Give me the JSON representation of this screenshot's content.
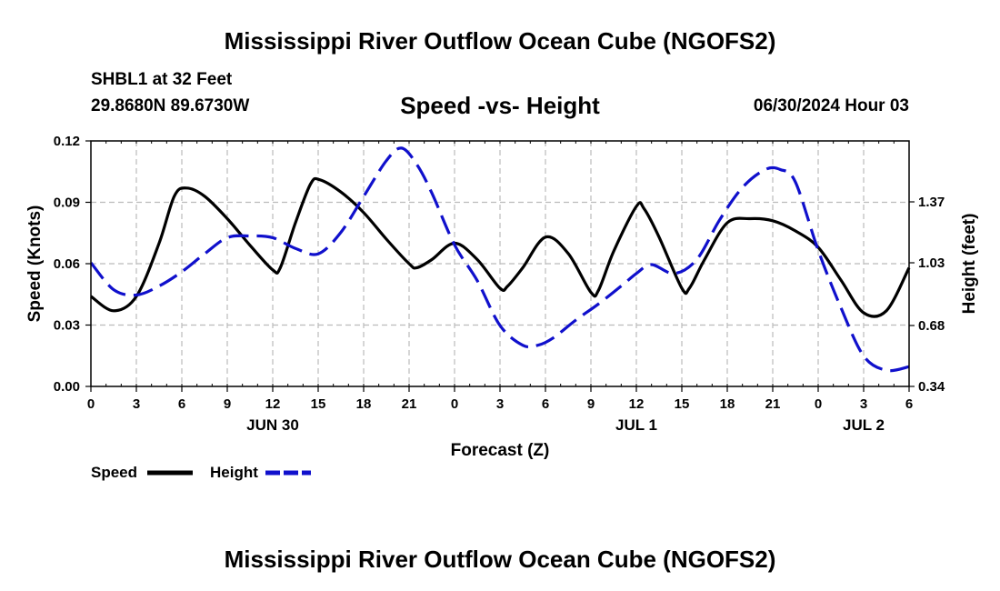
{
  "header": {
    "title": "Mississippi River Outflow Ocean Cube (NGOFS2)",
    "station": "SHBL1 at 32 Feet",
    "coords": "29.8680N  89.6730W",
    "date": "06/30/2024 Hour 03"
  },
  "footer": {
    "title": "Mississippi River Outflow Ocean Cube (NGOFS2)"
  },
  "colors": {
    "speed": "#000000",
    "height": "#1010cc",
    "grid": "#bbbbbb"
  },
  "chart_data": {
    "type": "line",
    "title": "Speed -vs- Height",
    "xlabel": "Forecast (Z)",
    "ylabel": "Speed (Knots)",
    "y2label": "Height (feet)",
    "x_unit": "hours from Jun 30 00Z",
    "xlim": [
      0,
      54
    ],
    "ylim": [
      0,
      0.12
    ],
    "y2lim": [
      0.34,
      1.71
    ],
    "x_ticks": [
      0,
      3,
      6,
      9,
      12,
      15,
      18,
      21,
      24,
      27,
      30,
      33,
      36,
      39,
      42,
      45,
      48,
      51,
      54
    ],
    "x_tick_labels": [
      "0",
      "3",
      "6",
      "9",
      "12",
      "15",
      "18",
      "21",
      "0",
      "3",
      "6",
      "9",
      "12",
      "15",
      "18",
      "21",
      "0",
      "3",
      "6"
    ],
    "date_labels": [
      {
        "label": "JUN 30",
        "x": 12
      },
      {
        "label": "JUL 1",
        "x": 36
      },
      {
        "label": "JUL 2",
        "x": 51
      }
    ],
    "y_ticks": [
      0.0,
      0.03,
      0.06,
      0.09,
      0.12
    ],
    "y_tick_labels": [
      "0.00",
      "0.03",
      "0.06",
      "0.09",
      "0.12"
    ],
    "y2_ticks": [
      0.34,
      0.68,
      1.03,
      1.37
    ],
    "y2_tick_labels": [
      "0.34",
      "0.68",
      "1.03",
      "1.37"
    ],
    "grid": true,
    "legend": [
      {
        "label": "Speed",
        "style": "solid"
      },
      {
        "label": "Height",
        "style": "dashed"
      }
    ],
    "series": [
      {
        "name": "Speed",
        "axis": "left",
        "style": "solid",
        "x": [
          0,
          1.5,
          3,
          4.5,
          5.5,
          6.3,
          7.5,
          9,
          10.5,
          12,
          12.5,
          13.5,
          14.5,
          15.1,
          16.5,
          18,
          19.5,
          21,
          21.5,
          22.5,
          24,
          25.5,
          27,
          27.5,
          28.5,
          30,
          31.5,
          33,
          33.5,
          34.5,
          36,
          36.5,
          37.5,
          39,
          39.5,
          40.5,
          42,
          43.5,
          45,
          46.5,
          48,
          49.5,
          51,
          52.5,
          54
        ],
        "values": [
          0.044,
          0.037,
          0.044,
          0.07,
          0.093,
          0.097,
          0.093,
          0.082,
          0.069,
          0.057,
          0.058,
          0.08,
          0.099,
          0.101,
          0.095,
          0.085,
          0.072,
          0.06,
          0.058,
          0.062,
          0.07,
          0.062,
          0.048,
          0.049,
          0.058,
          0.073,
          0.065,
          0.046,
          0.047,
          0.066,
          0.088,
          0.087,
          0.073,
          0.048,
          0.048,
          0.062,
          0.08,
          0.082,
          0.081,
          0.076,
          0.068,
          0.052,
          0.036,
          0.037,
          0.058
        ]
      },
      {
        "name": "Height",
        "axis": "right",
        "style": "dashed",
        "x": [
          0,
          1.5,
          3,
          4.5,
          6,
          7.5,
          9,
          10.5,
          12,
          13.5,
          15,
          16.5,
          18,
          19.5,
          20.5,
          21.5,
          22.5,
          24,
          25.5,
          27,
          28.5,
          29.5,
          30.5,
          32,
          33.5,
          35,
          36,
          37,
          38.5,
          40,
          41.5,
          43,
          44.5,
          45.5,
          46.5,
          48,
          49.5,
          51,
          52.5,
          54
        ],
        "values": [
          1.03,
          0.88,
          0.85,
          0.9,
          0.98,
          1.08,
          1.17,
          1.18,
          1.17,
          1.11,
          1.08,
          1.2,
          1.4,
          1.6,
          1.67,
          1.58,
          1.42,
          1.13,
          0.93,
          0.68,
          0.57,
          0.57,
          0.61,
          0.71,
          0.8,
          0.9,
          0.97,
          1.02,
          0.97,
          1.05,
          1.27,
          1.45,
          1.55,
          1.55,
          1.48,
          1.1,
          0.78,
          0.51,
          0.43,
          0.45
        ]
      }
    ]
  }
}
